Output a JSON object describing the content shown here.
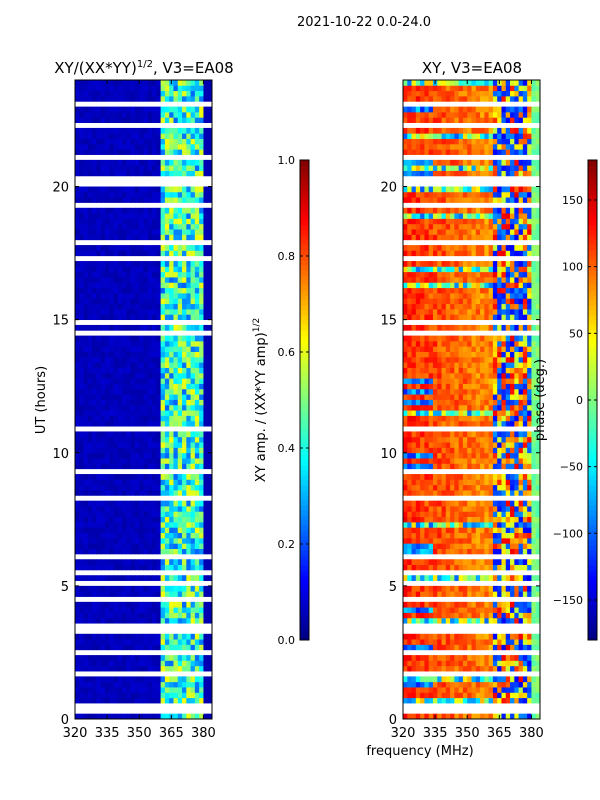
{
  "suptitle": "2021-10-22 0.0-24.0",
  "chart_data": [
    {
      "type": "heatmap",
      "title_main": "XY/(XX*YY)",
      "title_sup": "1/2",
      "title_rest": ", V3=EA08",
      "xlabel": "",
      "ylabel": "UT (hours)",
      "xlim": [
        320,
        384
      ],
      "ylim": [
        0,
        24
      ],
      "xticks": [
        "320",
        "335",
        "350",
        "365",
        "380"
      ],
      "yticks": [
        "0",
        "5",
        "10",
        "15",
        "20"
      ],
      "colorbar": {
        "label_main": "XY amp. / (XX*YY amp)",
        "label_sup": "1/2",
        "range": [
          0.0,
          1.0
        ],
        "ticks": [
          "0.0",
          "0.2",
          "0.4",
          "0.6",
          "0.8",
          "1.0"
        ],
        "colormap": "jet"
      },
      "pattern": {
        "low_band_mhz": [
          320,
          361
        ],
        "low_band_value": 0.05,
        "high_band_mhz": [
          361,
          381
        ],
        "high_band_value_range": [
          0.25,
          0.65
        ]
      }
    },
    {
      "type": "heatmap",
      "title": "XY, V3=EA08",
      "xlabel": "frequency (MHz)",
      "ylabel": "",
      "xlim": [
        320,
        384
      ],
      "ylim": [
        0,
        24
      ],
      "xticks": [
        "320",
        "335",
        "350",
        "365",
        "380"
      ],
      "yticks": [
        "0",
        "5",
        "10",
        "15",
        "20"
      ],
      "colorbar": {
        "label": "phase (deg.)",
        "range": [
          -180,
          180
        ],
        "ticks": [
          "−150",
          "−100",
          "−50",
          "0",
          "50",
          "100",
          "150"
        ],
        "tick_values": [
          -150,
          -100,
          -50,
          0,
          50,
          100,
          150
        ],
        "colormap": "jet"
      },
      "pattern": {
        "main_band_mhz": [
          320,
          362
        ],
        "main_band_phase_deg": 130,
        "mixed_band_mhz": [
          362,
          380
        ],
        "edge_band_mhz": [
          380,
          384
        ],
        "edge_band_phase_deg": 0
      }
    }
  ],
  "flagged_hours": [
    0.3,
    0.55,
    1.65,
    2.2,
    2.45,
    3.25,
    3.55,
    4.5,
    5.15,
    5.45,
    6.05,
    6.6,
    7.2,
    7.8,
    8.25,
    8.6,
    9.0,
    9.3,
    10.2,
    10.9,
    12.6,
    13.6,
    14.5,
    14.95,
    15.6,
    17.25,
    17.9,
    18.2,
    19.35,
    20.05,
    20.35,
    21.05,
    21.6,
    22.3,
    22.6,
    23.1,
    23.6
  ]
}
